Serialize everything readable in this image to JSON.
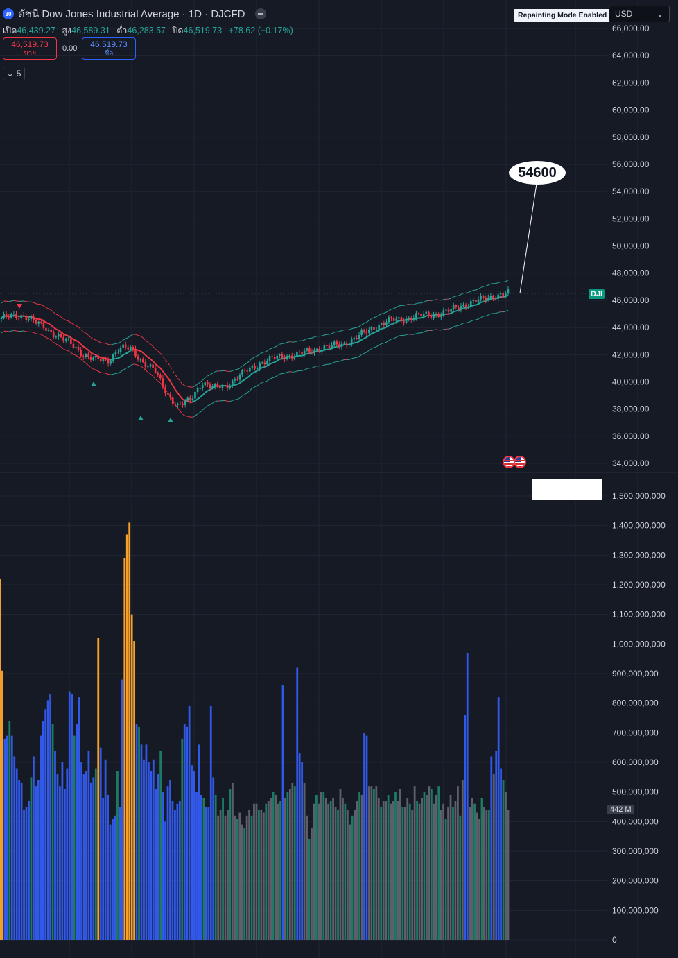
{
  "header": {
    "symbol_badge": "30",
    "title": "ดัชนี Dow Jones Industrial Average · 1D · DJCFD"
  },
  "ohlc": {
    "open_label": "เปิด",
    "open": "46,439.27",
    "high_label": "สูง",
    "high": "46,589.31",
    "low_label": "ต่ำ",
    "low": "46,283.57",
    "close_label": "ปิด",
    "close": "46,519.73",
    "change": "+78.62 (+0.17%)"
  },
  "trade": {
    "sell_price": "46,519.73",
    "sell_label": "ขาย",
    "spread": "0.00",
    "buy_price": "46,519.73",
    "buy_label": "ซื้อ"
  },
  "indicators_count": "5",
  "toolbar": {
    "repainting_label": "Repainting Mode Enabled",
    "currency": "USD"
  },
  "price_tag": "DJI",
  "volume_tag": "442 M",
  "target_label": "54600",
  "colors": {
    "background": "#161a25",
    "up": "#26a69a",
    "down": "#f23645",
    "volume_blue": "#3158e6",
    "volume_orange": "#f7a12b",
    "volume_green": "#1e7b63",
    "volume_gray": "#5d606b"
  },
  "price_axis": [
    "66,000.00",
    "64,000.00",
    "62,000.00",
    "60,000.00",
    "58,000.00",
    "56,000.00",
    "54,000.00",
    "52,000.00",
    "50,000.00",
    "48,000.00",
    "46,000.00",
    "44,000.00",
    "42,000.00",
    "40,000.00",
    "38,000.00",
    "36,000.00",
    "34,000.00"
  ],
  "volume_axis": [
    "1,500,000,000",
    "1,400,000,000",
    "1,300,000,000",
    "1,200,000,000",
    "1,100,000,000",
    "1,000,000,000",
    "900,000,000",
    "800,000,000",
    "700,000,000",
    "600,000,000",
    "500,000,000",
    "400,000,000",
    "300,000,000",
    "200,000,000",
    "100,000,000",
    "0"
  ],
  "chart_data": {
    "type": "candlestick",
    "price_range": [
      34000,
      66000
    ],
    "volume_range": [
      0,
      1500000000
    ],
    "anchors": [
      44700,
      44800,
      44900,
      44300,
      43800,
      43300,
      42700,
      42000,
      41600,
      41500,
      42500,
      42400,
      41500,
      40800,
      39200,
      38200,
      38600,
      40000,
      39500,
      39700,
      40300,
      40900,
      41400,
      41700,
      41900,
      42000,
      42200,
      42500,
      42600,
      42800,
      43200,
      43700,
      44200,
      44500,
      44600,
      44800,
      44900,
      45000,
      45200,
      45600,
      45900,
      46100,
      46400,
      46500
    ],
    "volumes_m": [
      1220,
      910,
      680,
      690,
      740,
      690,
      620,
      580,
      540,
      530,
      440,
      450,
      470,
      550,
      620,
      520,
      540,
      690,
      740,
      780,
      810,
      830,
      730,
      640,
      560,
      520,
      600,
      510,
      580,
      840,
      830,
      690,
      730,
      820,
      600,
      560,
      570,
      640,
      530,
      550,
      580,
      1020,
      650,
      480,
      610,
      490,
      390,
      410,
      420,
      570,
      450,
      880,
      1290,
      1370,
      1410,
      1100,
      1010,
      730,
      720,
      660,
      610,
      660,
      600,
      570,
      610,
      510,
      560,
      640,
      500,
      400,
      520,
      540,
      470,
      440,
      460,
      470,
      680,
      730,
      720,
      790,
      590,
      570,
      500,
      660,
      490,
      480,
      450,
      450,
      790,
      550,
      490,
      420,
      440,
      480,
      420,
      440,
      510,
      530,
      420,
      410,
      430,
      390,
      380,
      420,
      440,
      420,
      460,
      460,
      440,
      440,
      430,
      460,
      470,
      480,
      500,
      490,
      460,
      470,
      860,
      480,
      500,
      510,
      530,
      520,
      920,
      630,
      600,
      530,
      420,
      340,
      380,
      460,
      490,
      460,
      500,
      500,
      480,
      460,
      470,
      480,
      450,
      440,
      510,
      480,
      460,
      440,
      390,
      420,
      440,
      470,
      500,
      490,
      700,
      690,
      520,
      520,
      510,
      520,
      480,
      450,
      470,
      470,
      490,
      460,
      470,
      500,
      470,
      510,
      450,
      450,
      480,
      460,
      440,
      520,
      470,
      460,
      480,
      500,
      490,
      520,
      510,
      460,
      490,
      520,
      440,
      460,
      410,
      450,
      490,
      450,
      470,
      520,
      420,
      540,
      760,
      970,
      450,
      480,
      460,
      430,
      410,
      480,
      450,
      440,
      440,
      620,
      560,
      640,
      820,
      580,
      540,
      500,
      440
    ],
    "annotation_target": 54600
  }
}
